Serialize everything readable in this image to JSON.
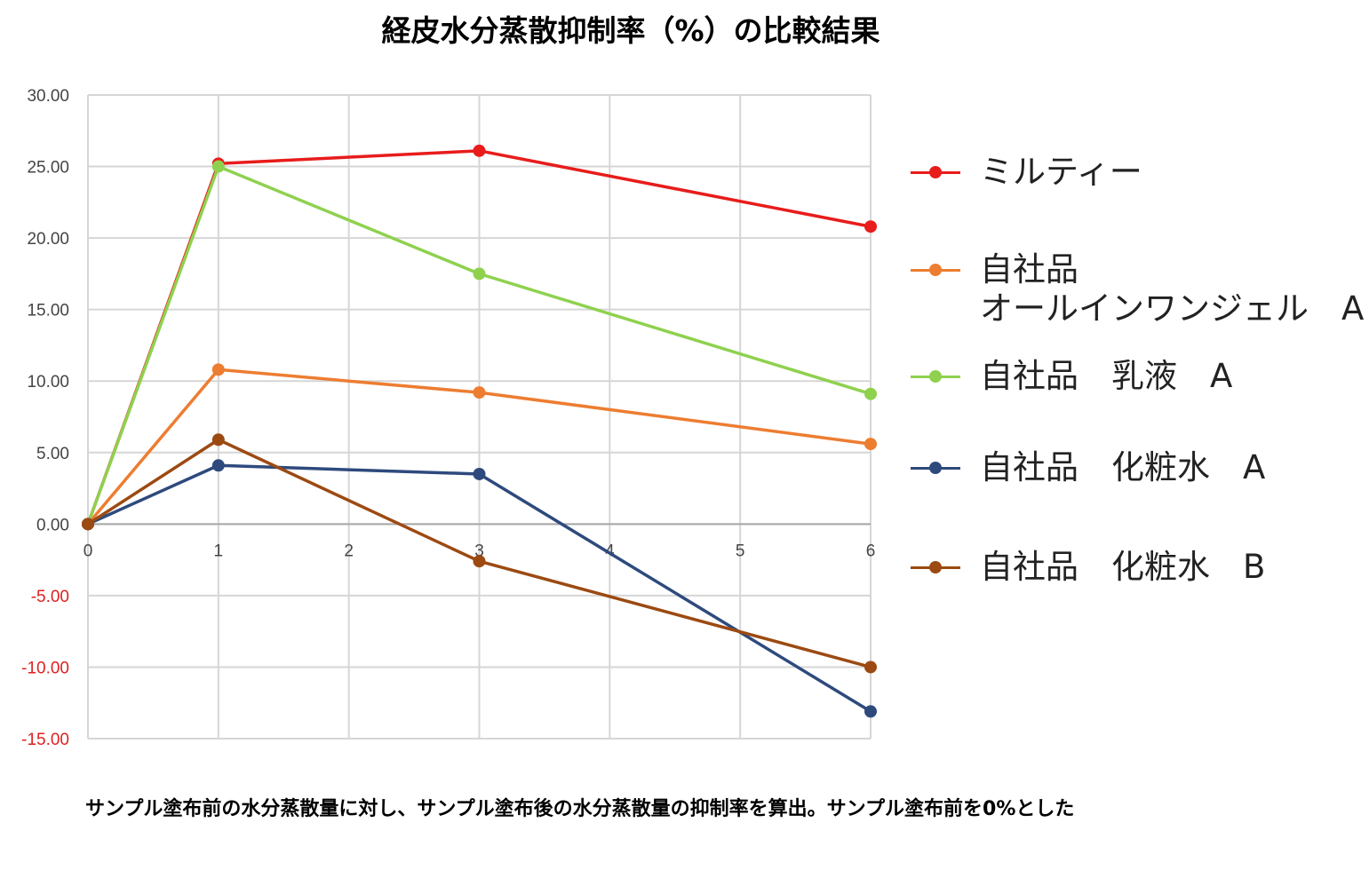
{
  "chart_data": {
    "type": "line",
    "title": "経皮水分蒸散抑制率（%）の比較結果",
    "xlabel": "",
    "ylabel": "",
    "xlim": [
      0,
      6
    ],
    "ylim": [
      -15,
      30
    ],
    "x_ticks": [
      "0",
      "1",
      "2",
      "3",
      "4",
      "5",
      "6"
    ],
    "y_ticks": [
      "30.00",
      "25.00",
      "20.00",
      "15.00",
      "10.00",
      "5.00",
      "0.00",
      "-5.00",
      "-10.00",
      "-15.00"
    ],
    "negative_tick_color": "#e02020",
    "grid": true,
    "legend_position": "right",
    "series": [
      {
        "name": "ミルティー",
        "color": "#e81c1c",
        "x": [
          0,
          1,
          3,
          6
        ],
        "values": [
          0,
          25.2,
          26.1,
          20.8
        ]
      },
      {
        "name": "自社品\nオールインワンジェル　A",
        "color": "#ed7d31",
        "x": [
          0,
          1,
          3,
          6
        ],
        "values": [
          0,
          10.8,
          9.2,
          5.6
        ]
      },
      {
        "name": "自社品　乳液　A",
        "color": "#8fd14f",
        "x": [
          0,
          1,
          3,
          6
        ],
        "values": [
          0,
          25.0,
          17.5,
          9.1
        ]
      },
      {
        "name": "自社品　化粧水　A",
        "color": "#2e4a7d",
        "x": [
          0,
          1,
          3,
          6
        ],
        "values": [
          0,
          4.1,
          3.5,
          -13.1
        ]
      },
      {
        "name": "自社品　化粧水　B",
        "color": "#9c4a12",
        "x": [
          0,
          1,
          3,
          6
        ],
        "values": [
          0,
          5.9,
          -2.6,
          -10.0
        ]
      }
    ]
  },
  "footnote": "サンプル塗布前の水分蒸散量に対し、サンプル塗布後の水分蒸散量の抑制率を算出。サンプル塗布前を0%とした"
}
